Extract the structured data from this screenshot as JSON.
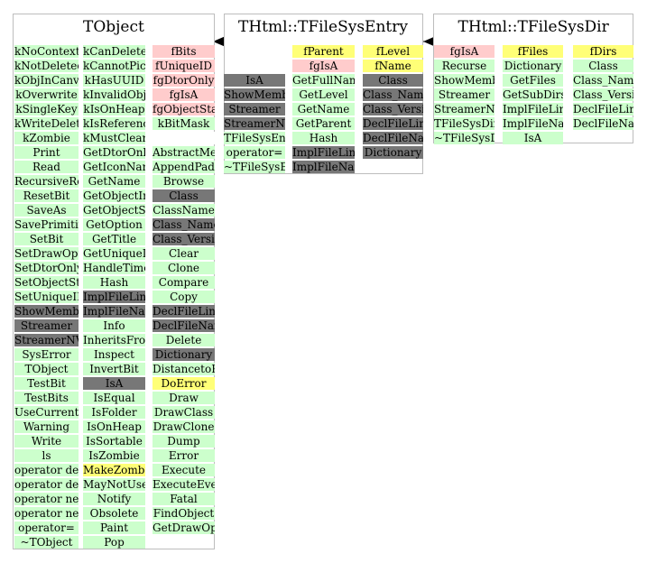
{
  "classes": [
    {
      "name": "TObject",
      "columns": [
        {
          "rows": [
            {
              "text": "kNoContextMenu",
              "color": "green"
            },
            {
              "text": "kNotDeleted",
              "color": "green"
            },
            {
              "text": "kObjInCanvas",
              "color": "green"
            },
            {
              "text": "kOverwrite",
              "color": "green"
            },
            {
              "text": "kSingleKey",
              "color": "green"
            },
            {
              "text": "kWriteDelete",
              "color": "green"
            },
            {
              "text": "kZombie",
              "color": "green"
            },
            {
              "text": "Print",
              "color": "green"
            },
            {
              "text": "Read",
              "color": "green"
            },
            {
              "text": "RecursiveRemove",
              "color": "green"
            },
            {
              "text": "ResetBit",
              "color": "green"
            },
            {
              "text": "SaveAs",
              "color": "green"
            },
            {
              "text": "SavePrimitive",
              "color": "green"
            },
            {
              "text": "SetBit",
              "color": "green"
            },
            {
              "text": "SetDrawOption",
              "color": "green"
            },
            {
              "text": "SetDtorOnly",
              "color": "green"
            },
            {
              "text": "SetObjectStat",
              "color": "green"
            },
            {
              "text": "SetUniqueID",
              "color": "green"
            },
            {
              "text": "ShowMembers",
              "color": "grey"
            },
            {
              "text": "Streamer",
              "color": "grey"
            },
            {
              "text": "StreamerNVirtual",
              "color": "grey"
            },
            {
              "text": "SysError",
              "color": "green"
            },
            {
              "text": "TObject",
              "color": "green"
            },
            {
              "text": "TestBit",
              "color": "green"
            },
            {
              "text": "TestBits",
              "color": "green"
            },
            {
              "text": "UseCurrentStyle",
              "color": "green"
            },
            {
              "text": "Warning",
              "color": "green"
            },
            {
              "text": "Write",
              "color": "green"
            },
            {
              "text": "ls",
              "color": "green"
            },
            {
              "text": "operator delete",
              "color": "green"
            },
            {
              "text": "operator delete[]",
              "color": "green"
            },
            {
              "text": "operator new",
              "color": "green"
            },
            {
              "text": "operator new[]",
              "color": "green"
            },
            {
              "text": "operator=",
              "color": "green"
            },
            {
              "text": "~TObject",
              "color": "green"
            }
          ]
        },
        {
          "rows": [
            {
              "text": "kCanDelete",
              "color": "green"
            },
            {
              "text": "kCannotPick",
              "color": "green"
            },
            {
              "text": "kHasUUID",
              "color": "green"
            },
            {
              "text": "kInvalidObject",
              "color": "green"
            },
            {
              "text": "kIsOnHeap",
              "color": "green"
            },
            {
              "text": "kIsReferenced",
              "color": "green"
            },
            {
              "text": "kMustCleanup",
              "color": "green"
            },
            {
              "text": "GetDtorOnly",
              "color": "green"
            },
            {
              "text": "GetIconName",
              "color": "green"
            },
            {
              "text": "GetName",
              "color": "green"
            },
            {
              "text": "GetObjectInfo",
              "color": "green"
            },
            {
              "text": "GetObjectStat",
              "color": "green"
            },
            {
              "text": "GetOption",
              "color": "green"
            },
            {
              "text": "GetTitle",
              "color": "green"
            },
            {
              "text": "GetUniqueID",
              "color": "green"
            },
            {
              "text": "HandleTimer",
              "color": "green"
            },
            {
              "text": "Hash",
              "color": "green"
            },
            {
              "text": "ImplFileLine",
              "color": "grey"
            },
            {
              "text": "ImplFileName",
              "color": "grey"
            },
            {
              "text": "Info",
              "color": "green"
            },
            {
              "text": "InheritsFrom",
              "color": "green"
            },
            {
              "text": "Inspect",
              "color": "green"
            },
            {
              "text": "InvertBit",
              "color": "green"
            },
            {
              "text": "IsA",
              "color": "grey"
            },
            {
              "text": "IsEqual",
              "color": "green"
            },
            {
              "text": "IsFolder",
              "color": "green"
            },
            {
              "text": "IsOnHeap",
              "color": "green"
            },
            {
              "text": "IsSortable",
              "color": "green"
            },
            {
              "text": "IsZombie",
              "color": "green"
            },
            {
              "text": "MakeZombie",
              "color": "yellow"
            },
            {
              "text": "MayNotUse",
              "color": "green"
            },
            {
              "text": "Notify",
              "color": "green"
            },
            {
              "text": "Obsolete",
              "color": "green"
            },
            {
              "text": "Paint",
              "color": "green"
            },
            {
              "text": "Pop",
              "color": "green"
            }
          ]
        },
        {
          "rows": [
            {
              "text": "fBits",
              "color": "pink"
            },
            {
              "text": "fUniqueID",
              "color": "pink"
            },
            {
              "text": "fgDtorOnly",
              "color": "pink"
            },
            {
              "text": "fgIsA",
              "color": "pink"
            },
            {
              "text": "fgObjectStat",
              "color": "pink"
            },
            {
              "text": "kBitMask",
              "color": "green"
            },
            {
              "text": "",
              "color": "white"
            },
            {
              "text": "AbstractMethod",
              "color": "green"
            },
            {
              "text": "AppendPad",
              "color": "green"
            },
            {
              "text": "Browse",
              "color": "green"
            },
            {
              "text": "Class",
              "color": "grey"
            },
            {
              "text": "ClassName",
              "color": "green"
            },
            {
              "text": "Class_Name",
              "color": "grey"
            },
            {
              "text": "Class_Version",
              "color": "grey"
            },
            {
              "text": "Clear",
              "color": "green"
            },
            {
              "text": "Clone",
              "color": "green"
            },
            {
              "text": "Compare",
              "color": "green"
            },
            {
              "text": "Copy",
              "color": "green"
            },
            {
              "text": "DeclFileLine",
              "color": "grey"
            },
            {
              "text": "DeclFileName",
              "color": "grey"
            },
            {
              "text": "Delete",
              "color": "green"
            },
            {
              "text": "Dictionary",
              "color": "grey"
            },
            {
              "text": "DistancetoPrimitive",
              "color": "green"
            },
            {
              "text": "DoError",
              "color": "yellow"
            },
            {
              "text": "Draw",
              "color": "green"
            },
            {
              "text": "DrawClass",
              "color": "green"
            },
            {
              "text": "DrawClone",
              "color": "green"
            },
            {
              "text": "Dump",
              "color": "green"
            },
            {
              "text": "Error",
              "color": "green"
            },
            {
              "text": "Execute",
              "color": "green"
            },
            {
              "text": "ExecuteEvent",
              "color": "green"
            },
            {
              "text": "Fatal",
              "color": "green"
            },
            {
              "text": "FindObject",
              "color": "green"
            },
            {
              "text": "GetDrawOption",
              "color": "green"
            }
          ]
        }
      ]
    },
    {
      "name": "THtml::TFileSysEntry",
      "columns": [
        {
          "rows": [
            {
              "text": "IsA",
              "color": "grey"
            },
            {
              "text": "ShowMembers",
              "color": "grey"
            },
            {
              "text": "Streamer",
              "color": "grey"
            },
            {
              "text": "StreamerNVirtual",
              "color": "grey"
            },
            {
              "text": "TFileSysEntry",
              "color": "green"
            },
            {
              "text": "operator=",
              "color": "green"
            },
            {
              "text": "~TFileSysEntry",
              "color": "green"
            }
          ]
        },
        {
          "rows": [
            {
              "text": "fParent",
              "color": "yellow"
            },
            {
              "text": "fgIsA",
              "color": "pink"
            },
            {
              "text": "GetFullName",
              "color": "green"
            },
            {
              "text": "GetLevel",
              "color": "green"
            },
            {
              "text": "GetName",
              "color": "green"
            },
            {
              "text": "GetParent",
              "color": "green"
            },
            {
              "text": "Hash",
              "color": "green"
            },
            {
              "text": "ImplFileLine",
              "color": "grey"
            },
            {
              "text": "ImplFileName",
              "color": "grey"
            }
          ]
        },
        {
          "rows": [
            {
              "text": "fLevel",
              "color": "yellow"
            },
            {
              "text": "fName",
              "color": "yellow"
            },
            {
              "text": "Class",
              "color": "grey"
            },
            {
              "text": "Class_Name",
              "color": "grey"
            },
            {
              "text": "Class_Version",
              "color": "grey"
            },
            {
              "text": "DeclFileLine",
              "color": "grey"
            },
            {
              "text": "DeclFileName",
              "color": "grey"
            },
            {
              "text": "Dictionary",
              "color": "grey"
            }
          ]
        }
      ]
    },
    {
      "name": "THtml::TFileSysDir",
      "columns": [
        {
          "rows": [
            {
              "text": "fgIsA",
              "color": "pink"
            },
            {
              "text": "Recurse",
              "color": "green"
            },
            {
              "text": "ShowMembers",
              "color": "green"
            },
            {
              "text": "Streamer",
              "color": "green"
            },
            {
              "text": "StreamerNVirtual",
              "color": "green"
            },
            {
              "text": "TFileSysDir",
              "color": "green"
            },
            {
              "text": "~TFileSysDir",
              "color": "green"
            }
          ]
        },
        {
          "rows": [
            {
              "text": "fFiles",
              "color": "yellow"
            },
            {
              "text": "Dictionary",
              "color": "green"
            },
            {
              "text": "GetFiles",
              "color": "green"
            },
            {
              "text": "GetSubDirs",
              "color": "green"
            },
            {
              "text": "ImplFileLine",
              "color": "green"
            },
            {
              "text": "ImplFileName",
              "color": "green"
            },
            {
              "text": "IsA",
              "color": "green"
            }
          ]
        },
        {
          "rows": [
            {
              "text": "fDirs",
              "color": "yellow"
            },
            {
              "text": "Class",
              "color": "green"
            },
            {
              "text": "Class_Name",
              "color": "green"
            },
            {
              "text": "Class_Version",
              "color": "green"
            },
            {
              "text": "DeclFileLine",
              "color": "green"
            },
            {
              "text": "DeclFileName",
              "color": "green"
            }
          ]
        }
      ]
    }
  ],
  "colors": {
    "green": "#ccffcc",
    "pink": "#ffcccc",
    "yellow": "#ffff77",
    "grey": "#777777",
    "white": "#ffffff",
    "border": "#bdbdbd",
    "arrow": "#000000"
  }
}
